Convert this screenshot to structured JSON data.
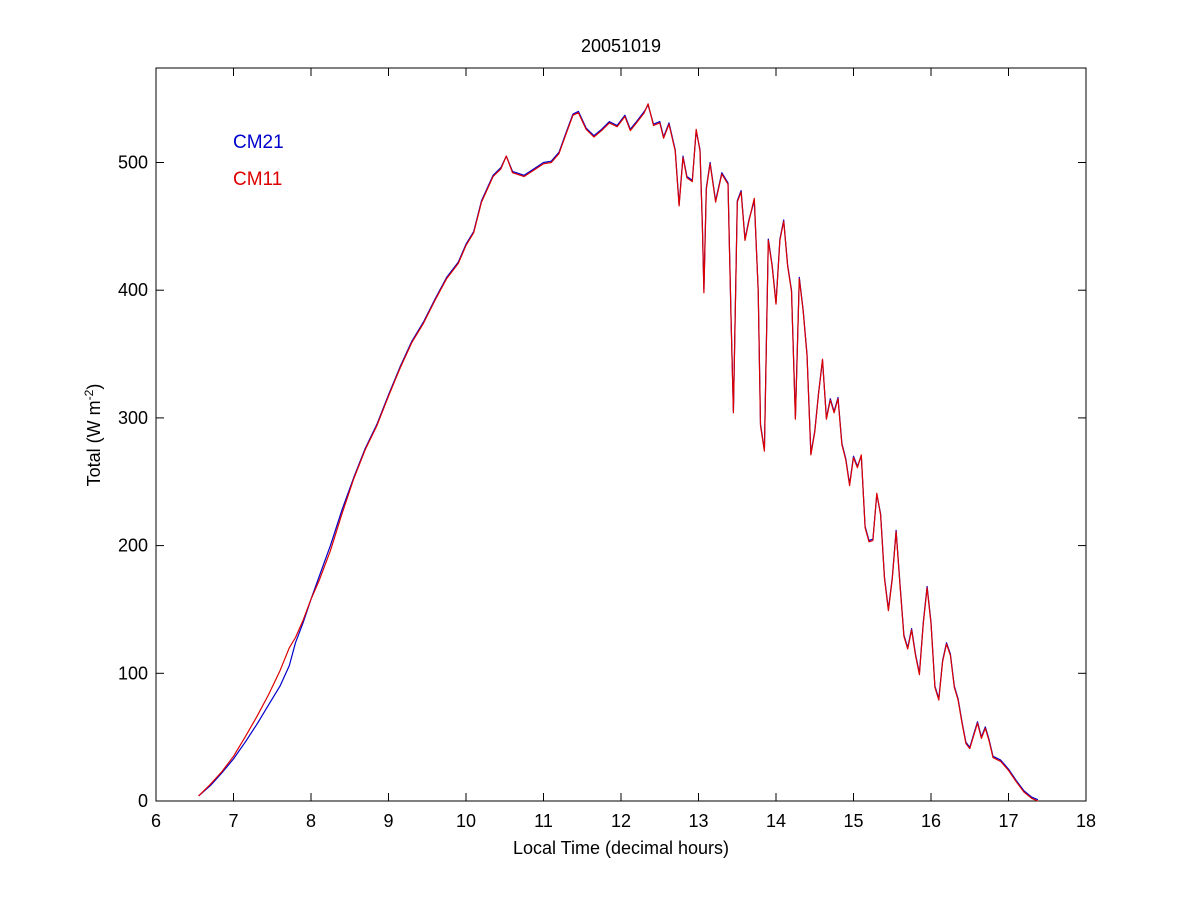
{
  "chart_data": {
    "type": "line",
    "title": "20051019",
    "xlabel": "Local Time (decimal hours)",
    "ylabel": {
      "main": "Total (W m",
      "sup": "-2",
      "close": ")"
    },
    "xlim": [
      6,
      18
    ],
    "ylim": [
      0,
      574
    ],
    "xticks": [
      6,
      7,
      8,
      9,
      10,
      11,
      12,
      13,
      14,
      15,
      16,
      17,
      18
    ],
    "yticks": [
      0,
      100,
      200,
      300,
      400,
      500
    ],
    "grid": false,
    "legend_position": "top-left",
    "series": [
      {
        "name": "CM21",
        "color": "#0000cc",
        "points": [
          [
            6.55,
            4
          ],
          [
            6.7,
            12
          ],
          [
            6.85,
            22
          ],
          [
            7.0,
            33
          ],
          [
            7.15,
            46
          ],
          [
            7.3,
            60
          ],
          [
            7.45,
            75
          ],
          [
            7.6,
            90
          ],
          [
            7.72,
            106
          ],
          [
            7.8,
            124
          ],
          [
            7.9,
            140
          ],
          [
            8.0,
            158
          ],
          [
            8.1,
            175
          ],
          [
            8.25,
            200
          ],
          [
            8.4,
            228
          ],
          [
            8.55,
            253
          ],
          [
            8.7,
            276
          ],
          [
            8.85,
            295
          ],
          [
            9.0,
            318
          ],
          [
            9.15,
            340
          ],
          [
            9.3,
            360
          ],
          [
            9.45,
            375
          ],
          [
            9.6,
            393
          ],
          [
            9.75,
            410
          ],
          [
            9.9,
            422
          ],
          [
            10.0,
            436
          ],
          [
            10.1,
            446
          ],
          [
            10.2,
            470
          ],
          [
            10.35,
            490
          ],
          [
            10.45,
            496
          ],
          [
            10.52,
            505
          ],
          [
            10.6,
            493
          ],
          [
            10.75,
            490
          ],
          [
            10.9,
            496
          ],
          [
            11.0,
            500
          ],
          [
            11.1,
            501
          ],
          [
            11.2,
            508
          ],
          [
            11.3,
            525
          ],
          [
            11.38,
            538
          ],
          [
            11.45,
            540
          ],
          [
            11.55,
            527
          ],
          [
            11.65,
            521
          ],
          [
            11.75,
            526
          ],
          [
            11.85,
            532
          ],
          [
            11.95,
            529
          ],
          [
            12.05,
            537
          ],
          [
            12.12,
            526
          ],
          [
            12.2,
            532
          ],
          [
            12.3,
            540
          ],
          [
            12.35,
            545
          ],
          [
            12.42,
            530
          ],
          [
            12.5,
            532
          ],
          [
            12.55,
            520
          ],
          [
            12.62,
            531
          ],
          [
            12.7,
            510
          ],
          [
            12.75,
            467
          ],
          [
            12.8,
            505
          ],
          [
            12.85,
            489
          ],
          [
            12.92,
            486
          ],
          [
            12.97,
            525
          ],
          [
            13.02,
            510
          ],
          [
            13.05,
            450
          ],
          [
            13.07,
            400
          ],
          [
            13.1,
            480
          ],
          [
            13.15,
            500
          ],
          [
            13.22,
            470
          ],
          [
            13.3,
            492
          ],
          [
            13.38,
            484
          ],
          [
            13.42,
            380
          ],
          [
            13.45,
            305
          ],
          [
            13.5,
            470
          ],
          [
            13.55,
            478
          ],
          [
            13.6,
            440
          ],
          [
            13.65,
            455
          ],
          [
            13.72,
            470
          ],
          [
            13.77,
            400
          ],
          [
            13.8,
            295
          ],
          [
            13.85,
            275
          ],
          [
            13.9,
            440
          ],
          [
            13.95,
            420
          ],
          [
            14.0,
            390
          ],
          [
            14.05,
            440
          ],
          [
            14.1,
            455
          ],
          [
            14.15,
            420
          ],
          [
            14.2,
            400
          ],
          [
            14.25,
            300
          ],
          [
            14.3,
            410
          ],
          [
            14.35,
            385
          ],
          [
            14.4,
            350
          ],
          [
            14.45,
            272
          ],
          [
            14.5,
            290
          ],
          [
            14.55,
            320
          ],
          [
            14.6,
            345
          ],
          [
            14.65,
            300
          ],
          [
            14.7,
            315
          ],
          [
            14.75,
            305
          ],
          [
            14.8,
            316
          ],
          [
            14.85,
            280
          ],
          [
            14.9,
            268
          ],
          [
            14.95,
            248
          ],
          [
            15.0,
            270
          ],
          [
            15.05,
            262
          ],
          [
            15.1,
            270
          ],
          [
            15.15,
            215
          ],
          [
            15.2,
            204
          ],
          [
            15.25,
            205
          ],
          [
            15.3,
            240
          ],
          [
            15.35,
            225
          ],
          [
            15.4,
            175
          ],
          [
            15.45,
            150
          ],
          [
            15.5,
            175
          ],
          [
            15.55,
            212
          ],
          [
            15.6,
            170
          ],
          [
            15.65,
            130
          ],
          [
            15.7,
            120
          ],
          [
            15.75,
            135
          ],
          [
            15.8,
            115
          ],
          [
            15.85,
            100
          ],
          [
            15.9,
            140
          ],
          [
            15.95,
            168
          ],
          [
            16.0,
            140
          ],
          [
            16.05,
            90
          ],
          [
            16.1,
            80
          ],
          [
            16.15,
            110
          ],
          [
            16.2,
            124
          ],
          [
            16.25,
            115
          ],
          [
            16.3,
            90
          ],
          [
            16.35,
            80
          ],
          [
            16.4,
            62
          ],
          [
            16.45,
            46
          ],
          [
            16.5,
            42
          ],
          [
            16.55,
            52
          ],
          [
            16.6,
            62
          ],
          [
            16.65,
            50
          ],
          [
            16.7,
            58
          ],
          [
            16.75,
            48
          ],
          [
            16.8,
            35
          ],
          [
            16.9,
            32
          ],
          [
            17.0,
            25
          ],
          [
            17.1,
            16
          ],
          [
            17.2,
            8
          ],
          [
            17.3,
            3
          ],
          [
            17.38,
            1
          ]
        ]
      },
      {
        "name": "CM11",
        "color": "#dd0000",
        "points": [
          [
            6.55,
            4
          ],
          [
            6.7,
            13
          ],
          [
            6.85,
            23
          ],
          [
            7.0,
            35
          ],
          [
            7.15,
            50
          ],
          [
            7.3,
            66
          ],
          [
            7.45,
            83
          ],
          [
            7.6,
            102
          ],
          [
            7.72,
            120
          ],
          [
            7.8,
            128
          ],
          [
            7.9,
            142
          ],
          [
            8.0,
            158
          ],
          [
            8.1,
            172
          ],
          [
            8.25,
            196
          ],
          [
            8.4,
            225
          ],
          [
            8.55,
            252
          ],
          [
            8.7,
            275
          ],
          [
            8.85,
            294
          ],
          [
            9.0,
            317
          ],
          [
            9.15,
            339
          ],
          [
            9.3,
            359
          ],
          [
            9.45,
            374
          ],
          [
            9.6,
            392
          ],
          [
            9.75,
            409
          ],
          [
            9.9,
            421
          ],
          [
            10.0,
            435
          ],
          [
            10.1,
            445
          ],
          [
            10.2,
            469
          ],
          [
            10.35,
            489
          ],
          [
            10.45,
            495
          ],
          [
            10.52,
            505
          ],
          [
            10.6,
            492
          ],
          [
            10.75,
            489
          ],
          [
            10.9,
            495
          ],
          [
            11.0,
            499
          ],
          [
            11.1,
            500
          ],
          [
            11.2,
            507
          ],
          [
            11.3,
            524
          ],
          [
            11.38,
            537
          ],
          [
            11.45,
            539
          ],
          [
            11.55,
            526
          ],
          [
            11.65,
            520
          ],
          [
            11.75,
            525
          ],
          [
            11.85,
            531
          ],
          [
            11.95,
            528
          ],
          [
            12.05,
            536
          ],
          [
            12.12,
            525
          ],
          [
            12.2,
            531
          ],
          [
            12.3,
            539
          ],
          [
            12.35,
            546
          ],
          [
            12.42,
            529
          ],
          [
            12.5,
            531
          ],
          [
            12.55,
            519
          ],
          [
            12.62,
            530
          ],
          [
            12.7,
            509
          ],
          [
            12.75,
            466
          ],
          [
            12.8,
            504
          ],
          [
            12.85,
            488
          ],
          [
            12.92,
            485
          ],
          [
            12.97,
            526
          ],
          [
            13.02,
            509
          ],
          [
            13.05,
            449
          ],
          [
            13.07,
            398
          ],
          [
            13.1,
            479
          ],
          [
            13.15,
            499
          ],
          [
            13.22,
            469
          ],
          [
            13.3,
            491
          ],
          [
            13.38,
            483
          ],
          [
            13.42,
            379
          ],
          [
            13.45,
            304
          ],
          [
            13.5,
            469
          ],
          [
            13.55,
            477
          ],
          [
            13.6,
            439
          ],
          [
            13.65,
            454
          ],
          [
            13.72,
            472
          ],
          [
            13.77,
            399
          ],
          [
            13.8,
            294
          ],
          [
            13.85,
            274
          ],
          [
            13.9,
            439
          ],
          [
            13.95,
            419
          ],
          [
            14.0,
            389
          ],
          [
            14.05,
            439
          ],
          [
            14.1,
            454
          ],
          [
            14.15,
            419
          ],
          [
            14.2,
            399
          ],
          [
            14.25,
            299
          ],
          [
            14.3,
            409
          ],
          [
            14.35,
            384
          ],
          [
            14.4,
            349
          ],
          [
            14.45,
            271
          ],
          [
            14.5,
            289
          ],
          [
            14.55,
            319
          ],
          [
            14.6,
            346
          ],
          [
            14.65,
            299
          ],
          [
            14.7,
            314
          ],
          [
            14.75,
            304
          ],
          [
            14.8,
            315
          ],
          [
            14.85,
            279
          ],
          [
            14.9,
            267
          ],
          [
            14.95,
            247
          ],
          [
            15.0,
            269
          ],
          [
            15.05,
            261
          ],
          [
            15.1,
            271
          ],
          [
            15.15,
            214
          ],
          [
            15.2,
            203
          ],
          [
            15.25,
            204
          ],
          [
            15.3,
            241
          ],
          [
            15.35,
            224
          ],
          [
            15.4,
            174
          ],
          [
            15.45,
            149
          ],
          [
            15.5,
            174
          ],
          [
            15.55,
            211
          ],
          [
            15.6,
            169
          ],
          [
            15.65,
            129
          ],
          [
            15.7,
            119
          ],
          [
            15.75,
            134
          ],
          [
            15.8,
            114
          ],
          [
            15.85,
            99
          ],
          [
            15.9,
            139
          ],
          [
            15.95,
            167
          ],
          [
            16.0,
            139
          ],
          [
            16.05,
            89
          ],
          [
            16.1,
            79
          ],
          [
            16.15,
            109
          ],
          [
            16.2,
            123
          ],
          [
            16.25,
            114
          ],
          [
            16.3,
            89
          ],
          [
            16.35,
            79
          ],
          [
            16.4,
            61
          ],
          [
            16.45,
            45
          ],
          [
            16.5,
            41
          ],
          [
            16.55,
            51
          ],
          [
            16.6,
            61
          ],
          [
            16.65,
            49
          ],
          [
            16.7,
            57
          ],
          [
            16.75,
            47
          ],
          [
            16.8,
            34
          ],
          [
            16.9,
            31
          ],
          [
            17.0,
            24
          ],
          [
            17.1,
            15
          ],
          [
            17.2,
            7
          ],
          [
            17.3,
            2
          ],
          [
            17.38,
            0
          ]
        ]
      }
    ]
  }
}
